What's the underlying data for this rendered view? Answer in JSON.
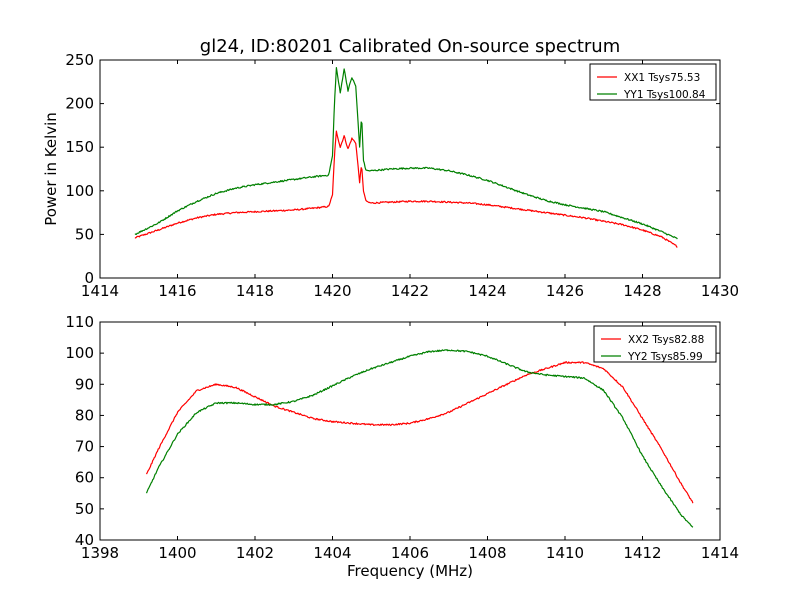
{
  "chart_data": [
    {
      "type": "line",
      "title": "gl24, ID:80201 Calibrated On-source spectrum",
      "xlabel": "",
      "ylabel": "Power in Kelvin",
      "xlim": [
        1414,
        1430
      ],
      "ylim": [
        0,
        250
      ],
      "xticks": [
        1414,
        1416,
        1418,
        1420,
        1422,
        1424,
        1426,
        1428,
        1430
      ],
      "yticks": [
        0,
        50,
        100,
        150,
        200,
        250
      ],
      "legend": "top-right",
      "series": [
        {
          "name": "XX1 Tsys75.53",
          "color": "#ff0000",
          "x": [
            1414.9,
            1415.5,
            1416.0,
            1416.5,
            1417.0,
            1417.5,
            1418.0,
            1418.5,
            1419.0,
            1419.5,
            1419.9,
            1420.0,
            1420.05,
            1420.1,
            1420.2,
            1420.3,
            1420.4,
            1420.5,
            1420.6,
            1420.7,
            1420.75,
            1420.8,
            1420.85,
            1420.9,
            1421.0,
            1421.5,
            1422.0,
            1422.5,
            1423.0,
            1423.5,
            1424.0,
            1424.5,
            1425.0,
            1425.5,
            1426.0,
            1426.5,
            1427.0,
            1427.5,
            1428.0,
            1428.5,
            1428.9
          ],
          "values": [
            46,
            55,
            63,
            69,
            73,
            75,
            76,
            77,
            78,
            80,
            82,
            95,
            140,
            168,
            150,
            163,
            148,
            160,
            155,
            110,
            130,
            100,
            90,
            87,
            86,
            87,
            88,
            88,
            87,
            86,
            84,
            81,
            78,
            75,
            72,
            69,
            65,
            61,
            55,
            47,
            36
          ]
        },
        {
          "name": "YY1 Tsys100.84",
          "color": "#008000",
          "x": [
            1414.9,
            1415.5,
            1416.0,
            1416.5,
            1417.0,
            1417.5,
            1418.0,
            1418.5,
            1419.0,
            1419.5,
            1419.9,
            1420.0,
            1420.05,
            1420.1,
            1420.2,
            1420.3,
            1420.4,
            1420.5,
            1420.6,
            1420.7,
            1420.75,
            1420.8,
            1420.85,
            1420.9,
            1421.0,
            1421.5,
            1422.0,
            1422.5,
            1423.0,
            1423.5,
            1424.0,
            1424.5,
            1425.0,
            1425.5,
            1426.0,
            1426.5,
            1427.0,
            1427.5,
            1428.0,
            1428.5,
            1428.9
          ],
          "values": [
            50,
            63,
            77,
            88,
            97,
            103,
            107,
            110,
            113,
            116,
            118,
            140,
            200,
            241,
            212,
            240,
            215,
            230,
            220,
            150,
            187,
            135,
            125,
            123,
            123,
            125,
            126,
            126,
            123,
            118,
            112,
            104,
            96,
            89,
            84,
            80,
            76,
            69,
            62,
            53,
            45
          ]
        }
      ]
    },
    {
      "type": "line",
      "title": "",
      "xlabel": "Frequency (MHz)",
      "ylabel": "",
      "xlim": [
        1398,
        1414
      ],
      "ylim": [
        40,
        110
      ],
      "xticks": [
        1398,
        1400,
        1402,
        1404,
        1406,
        1408,
        1410,
        1412,
        1414
      ],
      "yticks": [
        40,
        50,
        60,
        70,
        80,
        90,
        100,
        110
      ],
      "legend": "top-right",
      "series": [
        {
          "name": "XX2 Tsys82.88",
          "color": "#ff0000",
          "x": [
            1399.2,
            1399.5,
            1400.0,
            1400.5,
            1401.0,
            1401.5,
            1402.0,
            1402.5,
            1403.0,
            1403.5,
            1404.0,
            1404.5,
            1405.0,
            1405.5,
            1406.0,
            1406.5,
            1407.0,
            1407.5,
            1408.0,
            1408.5,
            1409.0,
            1409.5,
            1410.0,
            1410.5,
            1411.0,
            1411.5,
            1412.0,
            1412.5,
            1413.0,
            1413.3
          ],
          "values": [
            61,
            69,
            81,
            88,
            90,
            89,
            86,
            83,
            81,
            79,
            78,
            77.5,
            77,
            77,
            77.5,
            79,
            81,
            84,
            87,
            90,
            93,
            95,
            97,
            97,
            95,
            89,
            79,
            69,
            58,
            52
          ]
        },
        {
          "name": "YY2 Tsys85.99",
          "color": "#008000",
          "x": [
            1399.2,
            1399.5,
            1400.0,
            1400.5,
            1401.0,
            1401.5,
            1402.0,
            1402.5,
            1403.0,
            1403.5,
            1404.0,
            1404.5,
            1405.0,
            1405.5,
            1406.0,
            1406.5,
            1407.0,
            1407.5,
            1408.0,
            1408.5,
            1409.0,
            1409.5,
            1410.0,
            1410.5,
            1411.0,
            1411.5,
            1412.0,
            1412.5,
            1413.0,
            1413.3
          ],
          "values": [
            55,
            63,
            74,
            81,
            84,
            84,
            83.5,
            83.5,
            84.5,
            86.5,
            89.5,
            92.5,
            95,
            97,
            99,
            100.5,
            101,
            100.5,
            99,
            96.5,
            94,
            93,
            92.5,
            92,
            88,
            79,
            67,
            57,
            48,
            44
          ]
        }
      ]
    }
  ]
}
